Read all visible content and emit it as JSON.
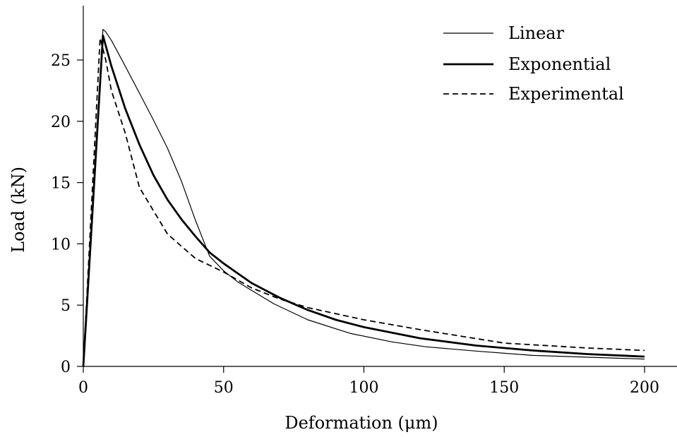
{
  "chart_data": {
    "type": "line",
    "title": "",
    "xlabel": "Deformation (μm)",
    "ylabel": "Load (kN)",
    "xlim": [
      0,
      210
    ],
    "ylim": [
      0,
      29
    ],
    "xticks": [
      0,
      50,
      100,
      150,
      200
    ],
    "yticks": [
      0,
      5,
      10,
      15,
      20,
      25
    ],
    "grid": false,
    "legend_position": "top-right",
    "series": [
      {
        "name": "Linear",
        "style": "thin-solid",
        "x": [
          0,
          7,
          8,
          10,
          14,
          20,
          25,
          30,
          35,
          40,
          45,
          50,
          55,
          60,
          68,
          80,
          95,
          110,
          122,
          140,
          160,
          180,
          200
        ],
        "y": [
          0,
          27.5,
          27.3,
          26.6,
          24.9,
          22.3,
          20.1,
          17.8,
          15.1,
          11.9,
          9.0,
          7.8,
          6.9,
          6.2,
          5.1,
          3.8,
          2.7,
          2.0,
          1.6,
          1.25,
          0.9,
          0.75,
          0.6
        ]
      },
      {
        "name": "Exponential",
        "style": "thick-solid",
        "x": [
          0,
          7,
          10,
          15,
          20,
          25,
          30,
          35,
          40,
          45,
          50,
          55,
          60,
          70,
          80,
          90,
          100,
          120,
          140,
          160,
          180,
          200
        ],
        "y": [
          0,
          27.0,
          24.5,
          21.0,
          18.1,
          15.6,
          13.6,
          12.0,
          10.6,
          9.3,
          8.4,
          7.6,
          6.8,
          5.6,
          4.6,
          3.8,
          3.2,
          2.3,
          1.7,
          1.3,
          1.0,
          0.8
        ]
      },
      {
        "name": "Experimental",
        "style": "dashed",
        "x": [
          0,
          6,
          8,
          10,
          15,
          20,
          25,
          30,
          35,
          40,
          50,
          60,
          70,
          80,
          100,
          120,
          150,
          180,
          200
        ],
        "y": [
          0,
          26.8,
          25.0,
          22.5,
          19.0,
          14.6,
          12.7,
          10.8,
          9.8,
          8.8,
          7.7,
          6.4,
          5.5,
          4.8,
          3.8,
          3.0,
          1.9,
          1.5,
          1.3
        ]
      }
    ]
  }
}
